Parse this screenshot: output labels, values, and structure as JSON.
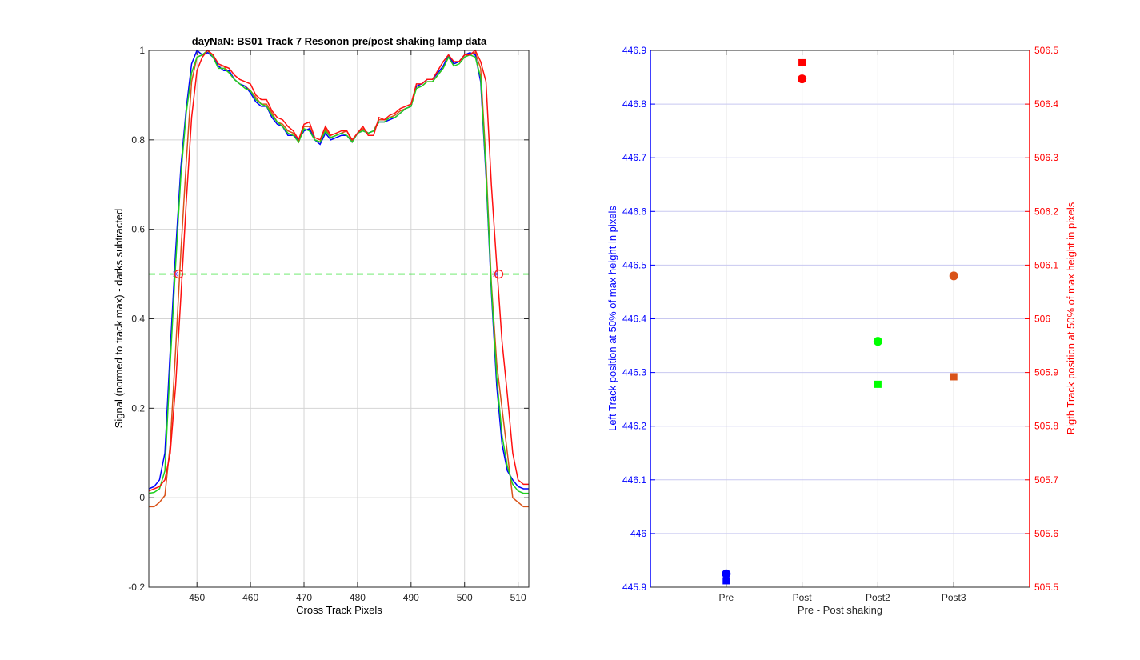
{
  "chart_data": [
    {
      "type": "line",
      "title": "dayNaN: BS01  Track 7 Resonon pre/post shaking lamp data",
      "xlabel": "Cross Track Pixels",
      "ylabel": "Signal (normed to track max) - darks subtracted",
      "xlim": [
        441,
        512
      ],
      "ylim": [
        -0.2,
        1
      ],
      "xticks": [
        450,
        460,
        470,
        480,
        490,
        500,
        510
      ],
      "yticks": [
        -0.2,
        0,
        0.2,
        0.4,
        0.6,
        0.8,
        1
      ],
      "grid": true,
      "threshold": {
        "y": 0.5,
        "color": "#20e020",
        "style": "dashed"
      },
      "markers": [
        {
          "x": 446.0,
          "y": 0.5,
          "color": "#7a5cff",
          "shape": "star"
        },
        {
          "x": 446.6,
          "y": 0.5,
          "color": "#ff2020",
          "shape": "circle"
        },
        {
          "x": 505.8,
          "y": 0.5,
          "color": "#7a5cff",
          "shape": "star"
        },
        {
          "x": 506.4,
          "y": 0.5,
          "color": "#ff2020",
          "shape": "circle"
        }
      ],
      "series": [
        {
          "color": "#d95319",
          "x": [
            441,
            442,
            443,
            444,
            445,
            446,
            447,
            448,
            449,
            450,
            451,
            452,
            453,
            454,
            455,
            456,
            457,
            458,
            459,
            460,
            461,
            462,
            463,
            464,
            465,
            466,
            467,
            468,
            469,
            470,
            471,
            472,
            473,
            474,
            475,
            476,
            477,
            478,
            479,
            480,
            481,
            482,
            483,
            484,
            485,
            486,
            487,
            488,
            489,
            490,
            491,
            492,
            493,
            494,
            495,
            496,
            497,
            498,
            499,
            500,
            501,
            502,
            503,
            504,
            505,
            506,
            507,
            508,
            509,
            510,
            511,
            512
          ],
          "y": [
            -0.02,
            -0.02,
            -0.01,
            0.005,
            0.12,
            0.33,
            0.55,
            0.75,
            0.93,
            0.985,
            0.99,
            1.0,
            0.985,
            0.965,
            0.965,
            0.95,
            0.935,
            0.925,
            0.92,
            0.91,
            0.895,
            0.88,
            0.88,
            0.86,
            0.84,
            0.835,
            0.82,
            0.815,
            0.795,
            0.83,
            0.83,
            0.8,
            0.795,
            0.825,
            0.805,
            0.81,
            0.815,
            0.82,
            0.795,
            0.815,
            0.825,
            0.815,
            0.82,
            0.845,
            0.845,
            0.85,
            0.855,
            0.865,
            0.87,
            0.875,
            0.92,
            0.92,
            0.93,
            0.93,
            0.945,
            0.96,
            0.985,
            0.97,
            0.975,
            0.99,
            0.99,
            0.995,
            0.96,
            0.75,
            0.48,
            0.3,
            0.2,
            0.1,
            0.0,
            -0.01,
            -0.02,
            -0.02
          ]
        },
        {
          "color": "#0000ff",
          "x": [
            441,
            442,
            443,
            444,
            445,
            446,
            447,
            448,
            449,
            450,
            451,
            452,
            453,
            454,
            455,
            456,
            457,
            458,
            459,
            460,
            461,
            462,
            463,
            464,
            465,
            466,
            467,
            468,
            469,
            470,
            471,
            472,
            473,
            474,
            475,
            476,
            477,
            478,
            479,
            480,
            481,
            482,
            483,
            484,
            485,
            486,
            487,
            488,
            489,
            490,
            491,
            492,
            493,
            494,
            495,
            496,
            497,
            498,
            499,
            500,
            501,
            502,
            503,
            504,
            505,
            506,
            507,
            508,
            509,
            510,
            511,
            512
          ],
          "y": [
            0.02,
            0.025,
            0.04,
            0.1,
            0.33,
            0.55,
            0.74,
            0.87,
            0.97,
            1.0,
            0.99,
            0.995,
            0.985,
            0.965,
            0.955,
            0.955,
            0.935,
            0.925,
            0.92,
            0.905,
            0.885,
            0.875,
            0.875,
            0.85,
            0.835,
            0.83,
            0.81,
            0.81,
            0.8,
            0.82,
            0.825,
            0.8,
            0.79,
            0.815,
            0.8,
            0.805,
            0.81,
            0.81,
            0.795,
            0.815,
            0.82,
            0.815,
            0.82,
            0.84,
            0.84,
            0.845,
            0.85,
            0.86,
            0.87,
            0.875,
            0.92,
            0.925,
            0.935,
            0.935,
            0.95,
            0.965,
            0.99,
            0.97,
            0.975,
            0.99,
            0.995,
            0.99,
            0.93,
            0.72,
            0.46,
            0.25,
            0.12,
            0.06,
            0.04,
            0.025,
            0.02,
            0.02
          ]
        },
        {
          "color": "#20d020",
          "x": [
            441,
            442,
            443,
            444,
            445,
            446,
            447,
            448,
            449,
            450,
            451,
            452,
            453,
            454,
            455,
            456,
            457,
            458,
            459,
            460,
            461,
            462,
            463,
            464,
            465,
            466,
            467,
            468,
            469,
            470,
            471,
            472,
            473,
            474,
            475,
            476,
            477,
            478,
            479,
            480,
            481,
            482,
            483,
            484,
            485,
            486,
            487,
            488,
            489,
            490,
            491,
            492,
            493,
            494,
            495,
            496,
            497,
            498,
            499,
            500,
            501,
            502,
            503,
            504,
            505,
            506,
            507,
            508,
            509,
            510,
            511,
            512
          ],
          "y": [
            0.01,
            0.012,
            0.02,
            0.06,
            0.3,
            0.52,
            0.72,
            0.86,
            0.95,
            0.985,
            0.99,
            1.0,
            0.985,
            0.96,
            0.96,
            0.95,
            0.935,
            0.925,
            0.915,
            0.91,
            0.89,
            0.88,
            0.875,
            0.855,
            0.84,
            0.83,
            0.815,
            0.81,
            0.795,
            0.825,
            0.82,
            0.8,
            0.795,
            0.82,
            0.805,
            0.81,
            0.815,
            0.81,
            0.795,
            0.815,
            0.82,
            0.815,
            0.82,
            0.84,
            0.84,
            0.85,
            0.85,
            0.86,
            0.87,
            0.875,
            0.915,
            0.92,
            0.93,
            0.93,
            0.945,
            0.96,
            0.985,
            0.965,
            0.97,
            0.985,
            0.99,
            0.985,
            0.94,
            0.73,
            0.47,
            0.27,
            0.14,
            0.07,
            0.03,
            0.015,
            0.01,
            0.01
          ]
        },
        {
          "color": "#ff1010",
          "x": [
            441,
            442,
            443,
            444,
            445,
            446,
            447,
            448,
            449,
            450,
            451,
            452,
            453,
            454,
            455,
            456,
            457,
            458,
            459,
            460,
            461,
            462,
            463,
            464,
            465,
            466,
            467,
            468,
            469,
            470,
            471,
            472,
            473,
            474,
            475,
            476,
            477,
            478,
            479,
            480,
            481,
            482,
            483,
            484,
            485,
            486,
            487,
            488,
            489,
            490,
            491,
            492,
            493,
            494,
            495,
            496,
            497,
            498,
            499,
            500,
            501,
            502,
            503,
            504,
            505,
            506,
            507,
            508,
            509,
            510,
            511,
            512
          ],
          "y": [
            0.015,
            0.02,
            0.025,
            0.04,
            0.1,
            0.25,
            0.45,
            0.66,
            0.85,
            0.955,
            0.985,
            1.0,
            0.99,
            0.97,
            0.965,
            0.96,
            0.945,
            0.935,
            0.93,
            0.925,
            0.9,
            0.89,
            0.89,
            0.865,
            0.85,
            0.845,
            0.83,
            0.82,
            0.8,
            0.835,
            0.84,
            0.805,
            0.8,
            0.83,
            0.81,
            0.815,
            0.82,
            0.82,
            0.8,
            0.815,
            0.83,
            0.81,
            0.81,
            0.85,
            0.845,
            0.855,
            0.86,
            0.87,
            0.875,
            0.88,
            0.925,
            0.925,
            0.935,
            0.935,
            0.955,
            0.975,
            0.99,
            0.975,
            0.975,
            0.99,
            0.99,
            1.0,
            0.975,
            0.93,
            0.7,
            0.52,
            0.35,
            0.23,
            0.1,
            0.04,
            0.03,
            0.03
          ]
        }
      ]
    },
    {
      "type": "scatter",
      "xlabel": "Pre - Post shaking",
      "ylabel_left": "Left Track position at 50% of max height in pixels",
      "ylabel_right": "Rigth Track position at 50% of max height in pixels",
      "categories": [
        "Pre",
        "Post",
        "Post2",
        "Post3"
      ],
      "ylim_left": [
        445.9,
        446.9
      ],
      "ylim_right": [
        505.5,
        506.5
      ],
      "yticks_left": [
        "445.9",
        "446",
        "446.1",
        "446.2",
        "446.3",
        "446.4",
        "446.5",
        "446.6",
        "446.7",
        "446.8",
        "446.9"
      ],
      "yticks_right": [
        "505.5",
        "505.6",
        "505.7",
        "505.8",
        "505.9",
        "506",
        "506.1",
        "506.2",
        "506.3",
        "506.4",
        "506.5"
      ],
      "left_axis_color": "#0000ff",
      "right_axis_color": "#ff0000",
      "grid": true,
      "points_left": [
        {
          "category": "Pre",
          "value": 445.925,
          "color": "#0000ff"
        },
        {
          "category": "Post",
          "value": 446.847,
          "color": "#ff0000"
        },
        {
          "category": "Post2",
          "value": 446.358,
          "color": "#00ff00"
        },
        {
          "category": "Post3",
          "value": 446.48,
          "color": "#d95319"
        }
      ],
      "points_right": [
        {
          "category": "Pre",
          "value": 505.512,
          "color": "#0000ff"
        },
        {
          "category": "Post",
          "value": 506.477,
          "color": "#ff0000"
        },
        {
          "category": "Post2",
          "value": 505.878,
          "color": "#00ff00"
        },
        {
          "category": "Post3",
          "value": 505.892,
          "color": "#d95319"
        }
      ]
    }
  ]
}
